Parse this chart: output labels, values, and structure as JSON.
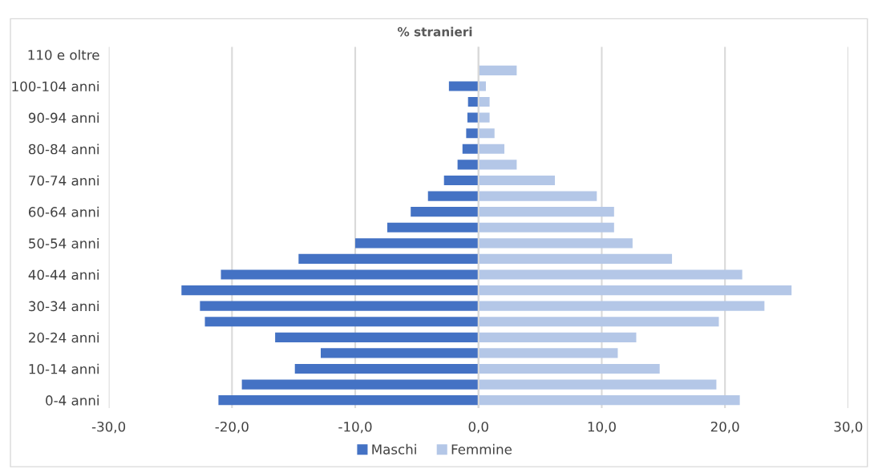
{
  "chart_data": {
    "type": "bar",
    "orientation": "horizontal",
    "stacked": true,
    "title": "% stranieri",
    "categories": [
      "110 e oltre",
      null,
      "100-104 anni",
      null,
      "90-94 anni",
      null,
      "80-84 anni",
      null,
      "70-74 anni",
      null,
      "60-64 anni",
      null,
      "50-54 anni",
      null,
      "40-44 anni",
      null,
      "30-34 anni",
      null,
      "20-24 anni",
      null,
      "10-14 anni",
      null,
      "0-4 anni"
    ],
    "series": [
      {
        "name": "Maschi",
        "color": "#4472c4",
        "values": [
          0,
          0,
          -2.4,
          -0.85,
          -0.9,
          -1.0,
          -1.3,
          -1.7,
          -2.8,
          -4.1,
          -5.5,
          -7.4,
          -10.0,
          -14.6,
          -20.9,
          -24.1,
          -22.6,
          -22.2,
          -16.5,
          -12.8,
          -14.9,
          -19.2,
          -21.1
        ]
      },
      {
        "name": "Femmine",
        "color": "#b4c7e7",
        "values": [
          0,
          3.1,
          0.6,
          0.9,
          0.9,
          1.3,
          2.1,
          3.1,
          6.2,
          9.6,
          11.0,
          11.0,
          12.5,
          15.7,
          21.4,
          25.4,
          23.2,
          19.5,
          12.8,
          11.3,
          14.7,
          19.3,
          21.2
        ]
      }
    ],
    "xlim": [
      -30,
      30
    ],
    "xticks": [
      {
        "value": -30,
        "label": "-30,0"
      },
      {
        "value": -20,
        "label": "-20,0"
      },
      {
        "value": -10,
        "label": "-10,0"
      },
      {
        "value": 0,
        "label": "0,0"
      },
      {
        "value": 10,
        "label": "10,0"
      },
      {
        "value": 20,
        "label": "20,0"
      },
      {
        "value": 30,
        "label": "30,0"
      }
    ],
    "grid": "x",
    "legend": "bottom"
  }
}
